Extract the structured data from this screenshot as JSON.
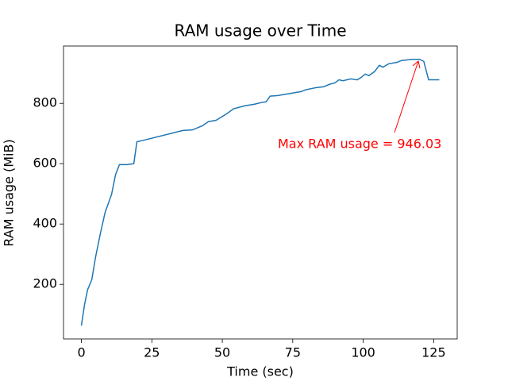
{
  "chart_data": {
    "type": "line",
    "title": "RAM usage over Time",
    "x_label": "Time (sec)",
    "y_label": "RAM usage (MiB)",
    "x": [
      0,
      1.1,
      2.2,
      3.7,
      5,
      6.7,
      8.4,
      10.7,
      12.1,
      13.5,
      16.3,
      18.6,
      19.7,
      21.4,
      36,
      39.4,
      43,
      45,
      47.8,
      51.5,
      54,
      58,
      61.3,
      64,
      65.5,
      67,
      69.7,
      78,
      79.6,
      83.2,
      86,
      88,
      90,
      91.4,
      92.8,
      95.6,
      97.9,
      99.3,
      100.7,
      102,
      104,
      105.7,
      107,
      109,
      112,
      113.6,
      117.5,
      120,
      121.5,
      123.2,
      127
    ],
    "series": [
      {
        "name": "RAM usage",
        "color": "#1f77b4",
        "values": [
          63,
          132,
          182,
          216,
          289,
          367,
          438,
          498,
          563,
          597,
          597,
          600,
          673,
          676,
          710,
          712,
          726,
          739,
          744,
          765,
          782,
          792,
          797,
          803,
          805,
          824,
          826,
          839,
          845,
          852,
          855,
          863,
          868,
          878,
          875,
          881,
          878,
          886,
          897,
          892,
          905,
          926,
          920,
          931,
          936,
          942,
          946,
          946.03,
          939,
          878,
          878
        ]
      }
    ],
    "annotation": {
      "text": "Max RAM usage = 946.03",
      "color": "#ff0000"
    },
    "xlim": [
      -6.35,
      133.35
    ],
    "xticks": [
      0,
      25,
      50,
      75,
      100,
      125
    ],
    "ylim": [
      19,
      990
    ],
    "yticks": [
      200,
      400,
      600,
      800
    ]
  }
}
